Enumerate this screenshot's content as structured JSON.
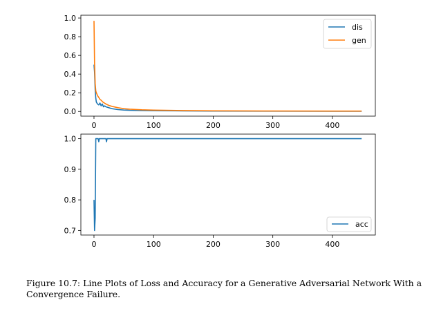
{
  "chart_data": [
    {
      "type": "line",
      "title": "",
      "xlabel": "",
      "ylabel": "",
      "xlim": [
        -22,
        472
      ],
      "ylim": [
        -0.05,
        1.03
      ],
      "xticks": [
        0,
        100,
        200,
        300,
        400
      ],
      "yticks": [
        0.0,
        0.2,
        0.4,
        0.6,
        0.8,
        1.0
      ],
      "xtick_labels": [
        "0",
        "100",
        "200",
        "300",
        "400"
      ],
      "ytick_labels": [
        "0.0",
        "0.2",
        "0.4",
        "0.6",
        "0.8",
        "1.0"
      ],
      "grid": false,
      "legend": "top-right",
      "series": [
        {
          "name": "dis",
          "color": "#1f77b4",
          "x": [
            0,
            1,
            2,
            3,
            4,
            6,
            8,
            10,
            12,
            14,
            16,
            18,
            20,
            25,
            30,
            40,
            50,
            60,
            80,
            100,
            150,
            200,
            300,
            400,
            449
          ],
          "y": [
            0.5,
            0.42,
            0.23,
            0.14,
            0.1,
            0.08,
            0.07,
            0.09,
            0.06,
            0.08,
            0.05,
            0.06,
            0.05,
            0.04,
            0.03,
            0.02,
            0.015,
            0.012,
            0.01,
            0.008,
            0.006,
            0.004,
            0.003,
            0.002,
            0.002
          ]
        },
        {
          "name": "gen",
          "color": "#ff7f0e",
          "x": [
            0,
            1,
            2,
            3,
            4,
            6,
            8,
            10,
            12,
            15,
            20,
            25,
            30,
            40,
            50,
            60,
            80,
            100,
            150,
            200,
            300,
            400,
            449
          ],
          "y": [
            0.97,
            0.52,
            0.3,
            0.22,
            0.2,
            0.17,
            0.15,
            0.13,
            0.12,
            0.1,
            0.08,
            0.065,
            0.055,
            0.04,
            0.03,
            0.025,
            0.018,
            0.014,
            0.01,
            0.007,
            0.005,
            0.004,
            0.004
          ]
        }
      ]
    },
    {
      "type": "line",
      "title": "",
      "xlabel": "",
      "ylabel": "",
      "xlim": [
        -22,
        472
      ],
      "ylim": [
        0.685,
        1.015
      ],
      "xticks": [
        0,
        100,
        200,
        300,
        400
      ],
      "yticks": [
        0.7,
        0.8,
        0.9,
        1.0
      ],
      "xtick_labels": [
        "0",
        "100",
        "200",
        "300",
        "400"
      ],
      "ytick_labels": [
        "0.7",
        "0.8",
        "0.9",
        "1.0"
      ],
      "grid": false,
      "legend": "bottom-right",
      "series": [
        {
          "name": "acc",
          "color": "#1f77b4",
          "x": [
            0,
            1,
            2,
            3,
            4,
            5,
            6,
            7,
            8,
            9,
            10,
            11,
            12,
            20,
            21,
            22,
            23,
            24,
            449
          ],
          "y": [
            0.8,
            0.7,
            0.74,
            1.0,
            1.0,
            1.0,
            1.0,
            1.0,
            0.99,
            1.0,
            1.0,
            1.0,
            1.0,
            1.0,
            0.99,
            1.0,
            1.0,
            1.0,
            1.0
          ]
        }
      ]
    }
  ],
  "caption": "Figure 10.7: Line Plots of Loss and Accuracy for a Generative Adversarial Network With a Convergence Failure."
}
